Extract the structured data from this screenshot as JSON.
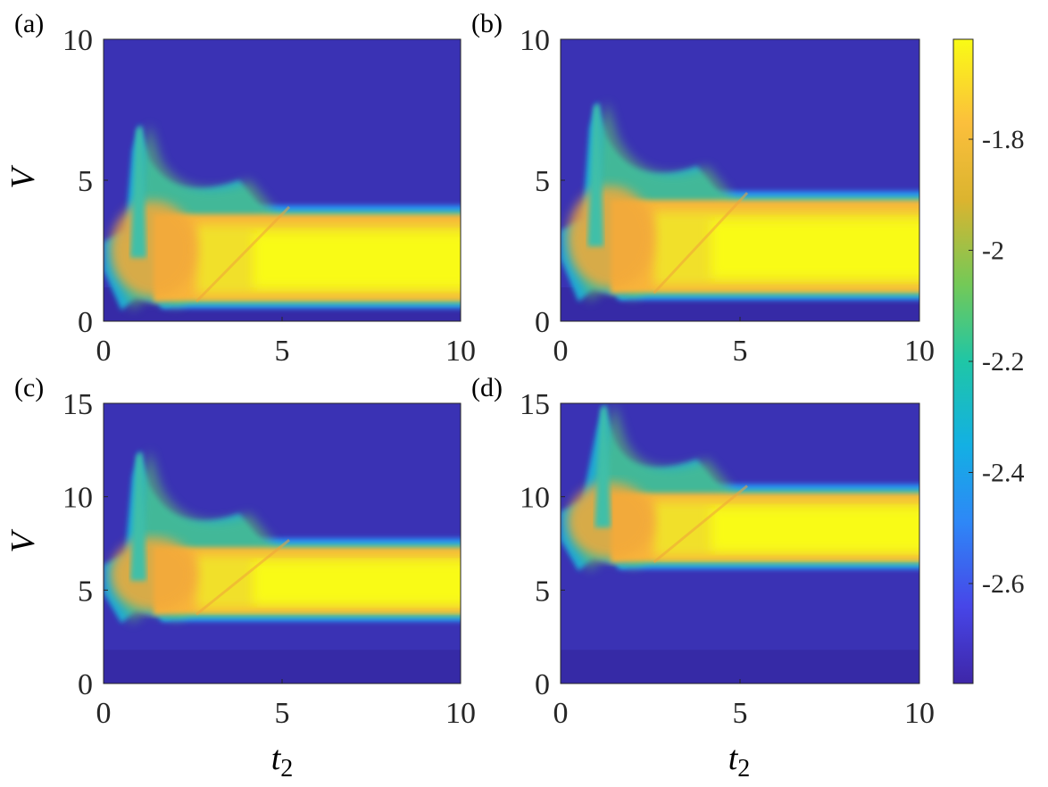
{
  "chart_data": {
    "type": "heatmap",
    "colormap": "parula",
    "xlabel": "t2",
    "ylabel": "V",
    "colorbar": {
      "range": [
        -2.78,
        -1.62
      ],
      "ticks": [
        "-1.8",
        "-2",
        "-2.2",
        "-2.4",
        "-2.6"
      ],
      "tick_values": [
        -1.8,
        -2.0,
        -2.2,
        -2.4,
        -2.6
      ]
    },
    "panels": [
      {
        "label": "(a)",
        "xlim": [
          0,
          10
        ],
        "ylim": [
          0,
          10
        ],
        "xticks": [
          "0",
          "5",
          "10"
        ],
        "yticks": [
          "0",
          "5",
          "10"
        ],
        "band": {
          "v_low": 0.7,
          "v_high": 3.8
        },
        "peak": {
          "t2": 1.0,
          "v": 7.0
        }
      },
      {
        "label": "(b)",
        "xlim": [
          0,
          10
        ],
        "ylim": [
          0,
          10
        ],
        "xticks": [
          "0",
          "5",
          "10"
        ],
        "yticks": [
          "0",
          "5",
          "10"
        ],
        "band": {
          "v_low": 1.0,
          "v_high": 4.3
        },
        "peak": {
          "t2": 1.0,
          "v": 7.8
        }
      },
      {
        "label": "(c)",
        "xlim": [
          0,
          10
        ],
        "ylim": [
          0,
          15
        ],
        "xticks": [
          "0",
          "5",
          "10"
        ],
        "yticks": [
          "0",
          "5",
          "10",
          "15"
        ],
        "band": {
          "v_low": 3.7,
          "v_high": 7.3
        },
        "peak": {
          "t2": 1.0,
          "v": 12.5
        }
      },
      {
        "label": "(d)",
        "xlim": [
          0,
          10
        ],
        "ylim": [
          0,
          15
        ],
        "xticks": [
          "0",
          "5",
          "10"
        ],
        "yticks": [
          "0",
          "5",
          "10",
          "15"
        ],
        "band": {
          "v_low": 6.5,
          "v_high": 10.2
        },
        "peak": {
          "t2": 1.2,
          "v": 15.0
        }
      }
    ]
  }
}
